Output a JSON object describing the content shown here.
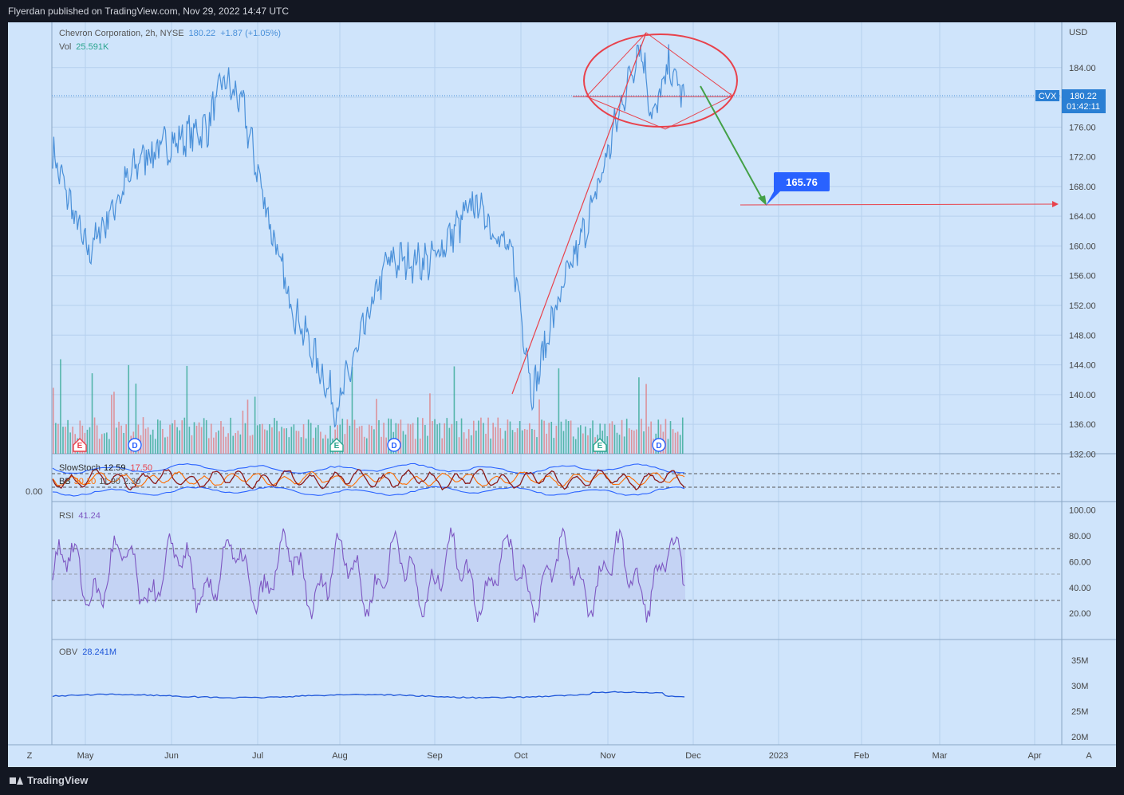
{
  "header": {
    "published_by": "Flyerdan published on TradingView.com, Nov 29, 2022 14:47 UTC"
  },
  "footer": {
    "brand": "TradingView"
  },
  "colors": {
    "background": "#cfe4fb",
    "price_line": "#4a90d9",
    "up_bar": "#2ba58f",
    "down_bar": "#e0787c",
    "rsi": "#7e57c2",
    "obv": "#1e56d9",
    "annotation_red": "#e8424c",
    "annotation_green": "#43a047",
    "target_label": "#2962ff"
  },
  "legend": {
    "symbol": "Chevron Corporation, 2h, NYSE",
    "price": "180.22",
    "change": "+1.87 (+1.05%)",
    "vol_label": "Vol",
    "vol_value": "25.591K",
    "stoch_label": "SlowStoch",
    "stoch_k": "12.59",
    "stoch_d": "17.50",
    "bb_label": "BB",
    "bb_val1": "30.10",
    "bb_val2": "11.90",
    "bb_val3": "2.30",
    "rsi_label": "RSI",
    "rsi_value": "41.24",
    "obv_label": "OBV",
    "obv_value": "28.241M"
  },
  "price_axis": {
    "currency": "USD",
    "ticks": [
      "184.00",
      "176.00",
      "172.00",
      "168.00",
      "164.00",
      "160.00",
      "156.00",
      "152.00",
      "148.00",
      "144.00",
      "140.00",
      "136.00",
      "132.00"
    ],
    "tag_symbol": "CVX",
    "tag_price": "180.22",
    "tag_countdown": "01:42:11"
  },
  "stoch_axis": {
    "left_value": "0.00"
  },
  "rsi_axis": {
    "ticks": [
      "100.00",
      "80.00",
      "60.00",
      "40.00",
      "20.00"
    ]
  },
  "obv_axis": {
    "ticks": [
      "35M",
      "30M",
      "25M",
      "20M"
    ]
  },
  "time_axis": {
    "labels": [
      "May",
      "Jun",
      "Jul",
      "Aug",
      "Sep",
      "Oct",
      "Nov",
      "Dec",
      "2023",
      "Feb",
      "Mar",
      "Apr"
    ],
    "left_button": "Z",
    "right_button": "A"
  },
  "events": [
    "E",
    "D",
    "E",
    "D",
    "E",
    "D"
  ],
  "target": {
    "label": "165.76",
    "value": 165.76
  },
  "chart_data": {
    "type": "line",
    "title": "Chevron Corporation, 2h, NYSE",
    "ylabel": "USD",
    "ylim": [
      132,
      188
    ],
    "x": [
      "Apr 20",
      "May 1",
      "May 15",
      "Jun 1",
      "Jun 8",
      "Jun 15",
      "Jun 22",
      "Jul 1",
      "Jul 14",
      "Aug 1",
      "Aug 15",
      "Sep 1",
      "Sep 15",
      "Sep 26",
      "Oct 1",
      "Oct 15",
      "Nov 1",
      "Nov 10",
      "Nov 15",
      "Nov 21",
      "Nov 29"
    ],
    "series": [
      {
        "name": "Chevron Corporation",
        "values": [
          172.5,
          159,
          172,
          176,
          182.5,
          179,
          168,
          154,
          138,
          158,
          158,
          166,
          158,
          140,
          150,
          164,
          179,
          187.5,
          177,
          184,
          180.22
        ]
      }
    ],
    "annotations": {
      "target_price": 165.76,
      "last_price": 180.22
    }
  }
}
